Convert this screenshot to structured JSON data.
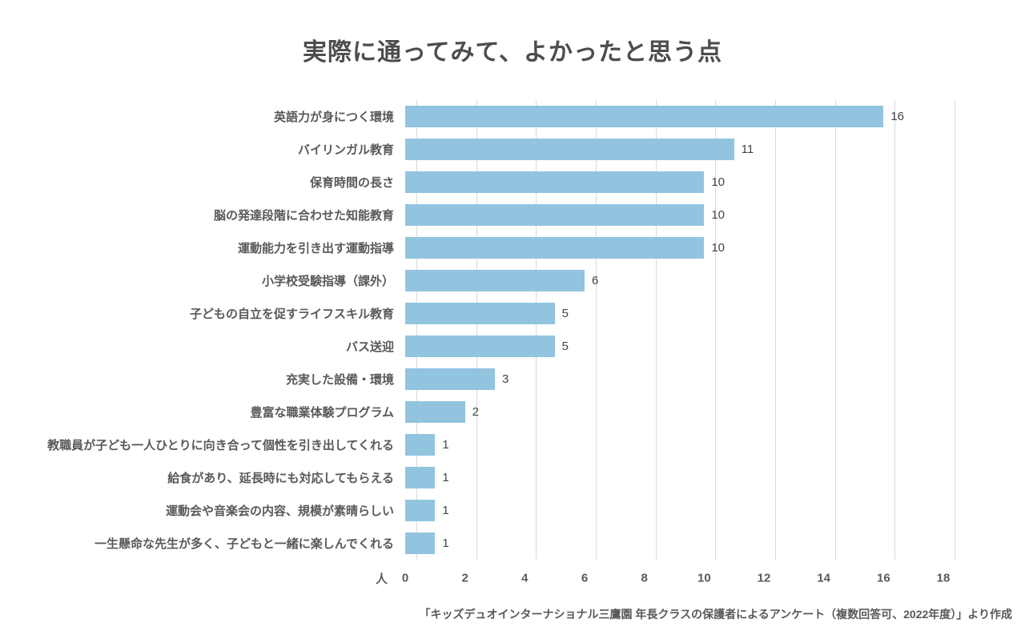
{
  "chart_data": {
    "type": "bar",
    "orientation": "horizontal",
    "title": "実際に通ってみて、よかったと思う点",
    "categories": [
      "英語力が身につく環境",
      "バイリンガル教育",
      "保育時間の長さ",
      "脳の発達段階に合わせた知能教育",
      "運動能力を引き出す運動指導",
      "小学校受験指導（課外）",
      "子どもの自立を促すライフスキル教育",
      "バス送迎",
      "充実した設備・環境",
      "豊富な職業体験プログラム",
      "教職員が子ども一人ひとりに向き合って個性を引き出してくれる",
      "給食があり、延長時にも対応してもらえる",
      "運動会や音楽会の内容、規模が素晴らしい",
      "一生懸命な先生が多く、子どもと一緒に楽しんでくれる"
    ],
    "values": [
      16,
      11,
      10,
      10,
      10,
      6,
      5,
      5,
      3,
      2,
      1,
      1,
      1,
      1
    ],
    "xlabel": "人",
    "xlim": [
      0,
      18
    ],
    "xticks": [
      0,
      2,
      4,
      6,
      8,
      10,
      12,
      14,
      16,
      18
    ],
    "grid": "vertical",
    "legend": "none",
    "bar_color": "#92C4E0",
    "gridline_color": "#d9d9d9",
    "source": "「キッズデュオインターナショナル三鷹園 年長クラスの保護者によるアンケート（複数回答可、2022年度）」より作成"
  }
}
